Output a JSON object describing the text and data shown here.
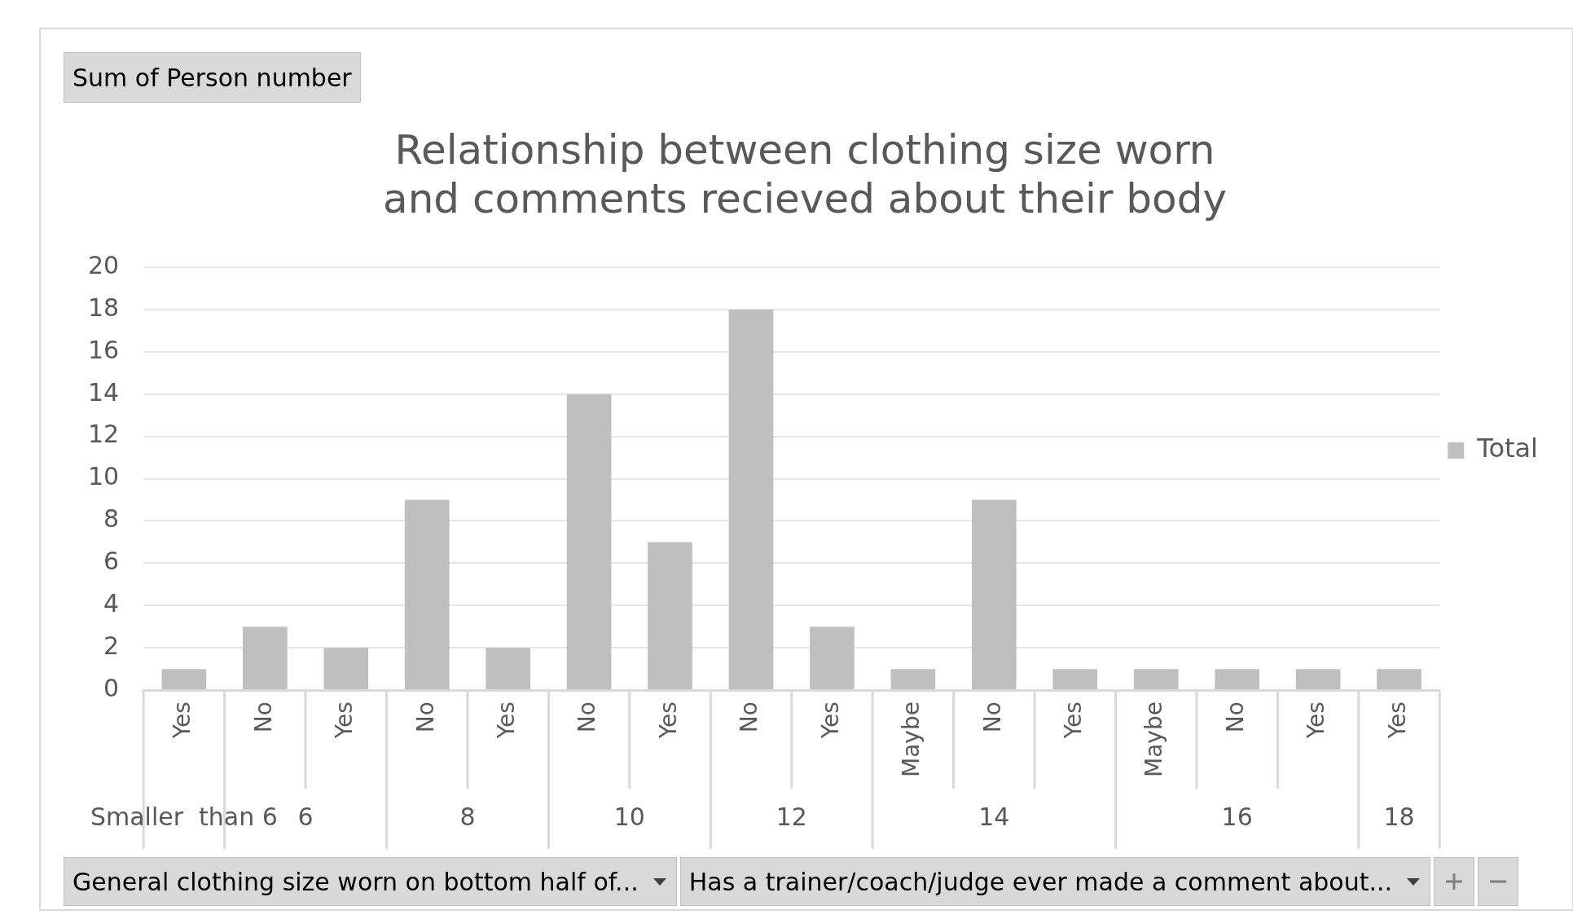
{
  "chart_data": {
    "type": "bar",
    "title": "Relationship between clothing size worn and comments recieved about their body",
    "categories": [
      "Yes",
      "No",
      "Yes",
      "No",
      "Yes",
      "No",
      "Yes",
      "No",
      "Yes",
      "Maybe",
      "No",
      "Yes",
      "Maybe",
      "No",
      "Yes",
      "Yes"
    ],
    "series": [
      {
        "name": "Total",
        "color": "#bfbfbf",
        "values": [
          1,
          3,
          2,
          9,
          2,
          14,
          7,
          18,
          3,
          1,
          9,
          1,
          1,
          1,
          1,
          1
        ]
      }
    ],
    "ylim": [
      0,
      20
    ],
    "yticks": [
      0,
      2,
      4,
      6,
      8,
      10,
      12,
      14,
      16,
      18,
      20
    ],
    "grid": "y",
    "legend": "right",
    "annotations": [
      "Sum of Person number",
      "Smaller  than 6",
      "6",
      "8",
      "10",
      "12",
      "14",
      "16",
      "18",
      "General clothing size worn on bottom half of...",
      "Has a trainer/coach/judge ever made a comment about..."
    ]
  }
}
